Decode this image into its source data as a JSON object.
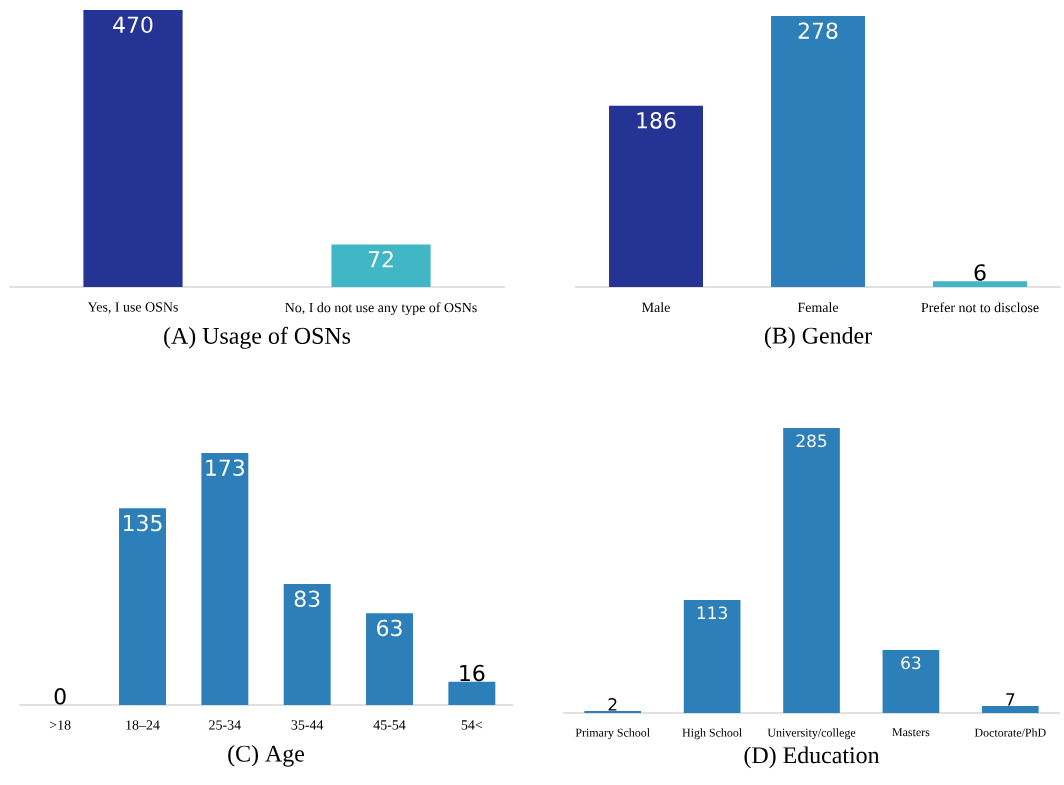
{
  "chart_data": [
    {
      "type": "bar",
      "title": "(A) Usage of OSNs",
      "categories": [
        "Yes, I use OSNs",
        "No, I do not use any type of OSNs"
      ],
      "values": [
        470,
        72
      ],
      "colors": [
        "#253494",
        "#41b6c4"
      ],
      "data_labels": true
    },
    {
      "type": "bar",
      "title": "(B) Gender",
      "categories": [
        "Male",
        "Female",
        "Prefer not to disclose"
      ],
      "values": [
        186,
        278,
        6
      ],
      "colors": [
        "#253494",
        "#2c7fb8",
        "#41b6c4"
      ],
      "data_labels": true
    },
    {
      "type": "bar",
      "title": "(C) Age",
      "categories": [
        ">18",
        "18–24",
        "25-34",
        "35-44",
        "45-54",
        "54<"
      ],
      "values": [
        0,
        135,
        173,
        83,
        63,
        16
      ],
      "colors": [
        "#2c7fb8",
        "#2c7fb8",
        "#2c7fb8",
        "#2c7fb8",
        "#2c7fb8",
        "#2c7fb8"
      ],
      "data_labels": true
    },
    {
      "type": "bar",
      "title": "(D) Education",
      "categories": [
        "Primary School",
        "High School",
        "University/college",
        "Masters",
        "Doctorate/PhD"
      ],
      "values": [
        2,
        113,
        285,
        63,
        7
      ],
      "colors": [
        "#2c7fb8",
        "#2c7fb8",
        "#2c7fb8",
        "#2c7fb8",
        "#2c7fb8"
      ],
      "data_labels": true
    }
  ]
}
